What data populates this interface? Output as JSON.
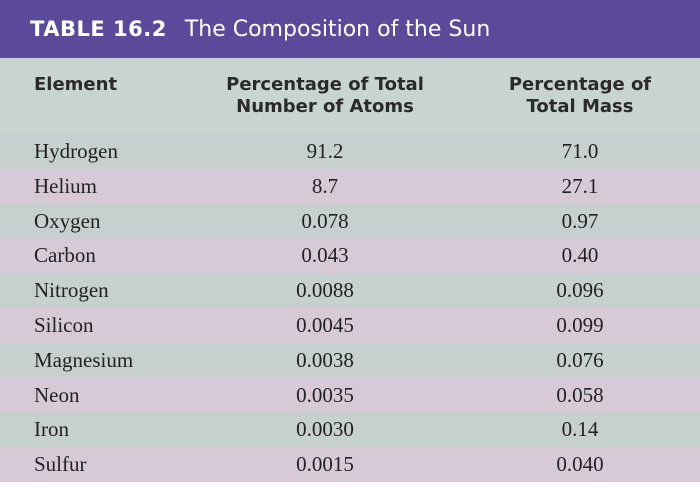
{
  "table": {
    "label": "TABLE 16.2",
    "title": "The Composition of the Sun",
    "columns": [
      "Element",
      "Percentage of Total\nNumber of Atoms",
      "Percentage of\nTotal Mass"
    ],
    "rows": [
      {
        "element": "Hydrogen",
        "atoms": "91.2",
        "mass": "71.0"
      },
      {
        "element": "Helium",
        "atoms": "8.7",
        "mass": "27.1"
      },
      {
        "element": "Oxygen",
        "atoms": "0.078",
        "mass": "0.97"
      },
      {
        "element": "Carbon",
        "atoms": "0.043",
        "mass": "0.40"
      },
      {
        "element": "Nitrogen",
        "atoms": "0.0088",
        "mass": "0.096"
      },
      {
        "element": "Silicon",
        "atoms": "0.0045",
        "mass": "0.099"
      },
      {
        "element": "Magnesium",
        "atoms": "0.0038",
        "mass": "0.076"
      },
      {
        "element": "Neon",
        "atoms": "0.0035",
        "mass": "0.058"
      },
      {
        "element": "Iron",
        "atoms": "0.0030",
        "mass": "0.14"
      },
      {
        "element": "Sulfur",
        "atoms": "0.0015",
        "mass": "0.040"
      }
    ]
  },
  "colors": {
    "title_bar": "#5b4a99",
    "header_bg": "#c8d4cf",
    "row_odd": "#c6d0cf",
    "row_even": "#d7cad6"
  }
}
